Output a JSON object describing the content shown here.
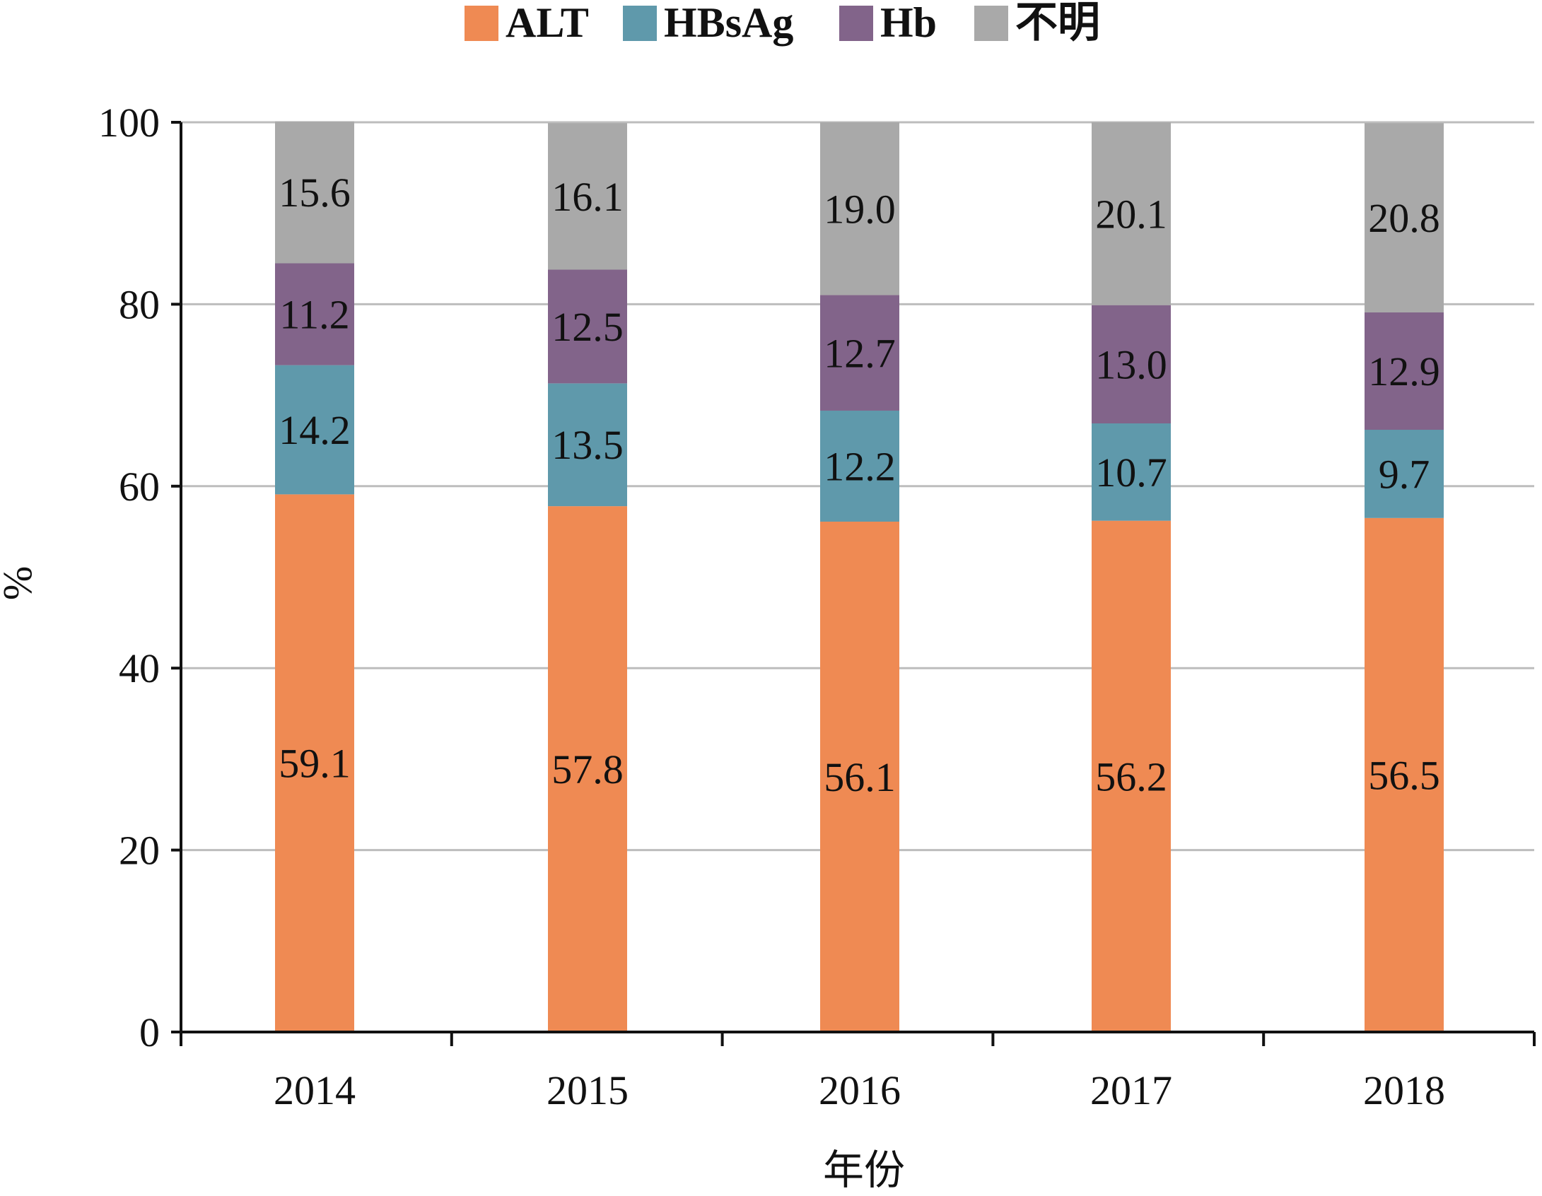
{
  "chart_data": {
    "type": "bar",
    "stacked": true,
    "categories": [
      "2014",
      "2015",
      "2016",
      "2017",
      "2018"
    ],
    "series": [
      {
        "name": "ALT",
        "color": "#ef8a53",
        "values": [
          59.1,
          57.8,
          56.1,
          56.2,
          56.5
        ]
      },
      {
        "name": "HBsAg",
        "color": "#5f99ab",
        "values": [
          14.2,
          13.5,
          12.2,
          10.7,
          9.7
        ]
      },
      {
        "name": "Hb",
        "color": "#82648a",
        "values": [
          11.2,
          12.5,
          12.7,
          13.0,
          12.9
        ]
      },
      {
        "name": "不明",
        "color": "#a9a9a9",
        "values": [
          15.6,
          16.1,
          19.0,
          20.1,
          20.8
        ]
      }
    ],
    "xlabel": "年份",
    "ylabel": "%",
    "ylim": [
      0,
      100
    ],
    "yticks": [
      "0",
      "20",
      "40",
      "60",
      "80",
      "100"
    ],
    "grid": true,
    "legend_position": "top-center"
  }
}
